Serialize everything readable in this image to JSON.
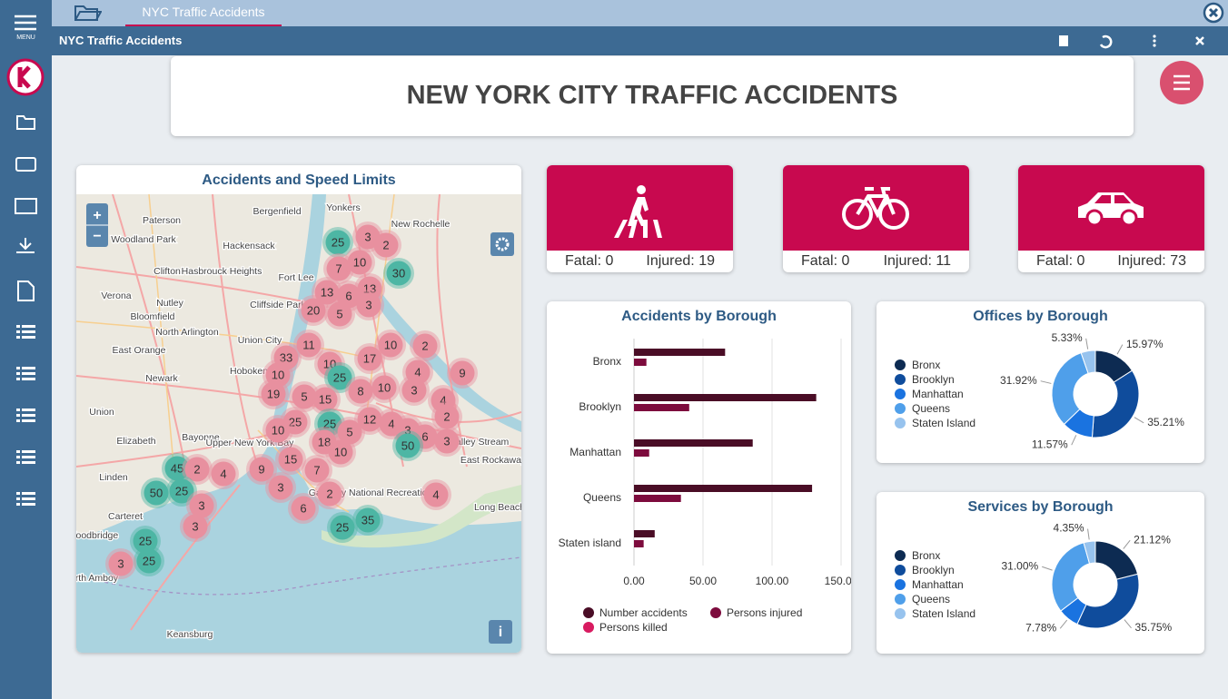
{
  "app": {
    "tab": "NYC Traffic Accidents",
    "window_title": "NYC Traffic Accidents",
    "menu": "MENU"
  },
  "header": {
    "title": "NEW YORK CITY TRAFFIC ACCIDENTS"
  },
  "map": {
    "title": "Accidents and Speed Limits",
    "zoom_in": "+",
    "zoom_out": "−",
    "info": "i",
    "places": [
      "Yonkers",
      "Paterson",
      "Bergenfield",
      "New Rochelle",
      "Woodland Park",
      "Hackensack",
      "Clifton",
      "Hasbrouck Heights",
      "Fort Lee",
      "Verona",
      "Nutley",
      "Cliffside Park",
      "Bloomfield",
      "North Arlington",
      "Union City",
      "East Orange",
      "Newark",
      "Hoboken",
      "Union",
      "Elizabeth",
      "Bayonne",
      "Upper New York Bay",
      "Valley Stream",
      "East Rockaway",
      "Linden",
      "Gateway National Recreation",
      "Long Beach",
      "Carteret",
      "Woodbridge",
      "Perth Amboy",
      "Keansburg"
    ],
    "clusters": [
      {
        "count": 25,
        "color": "#4db6a4"
      },
      {
        "count": 3,
        "color": "#e8909f"
      },
      {
        "count": 2,
        "color": "#e8909f"
      },
      {
        "count": 7,
        "color": "#e8909f"
      },
      {
        "count": 10,
        "color": "#e8909f"
      },
      {
        "count": 30,
        "color": "#4db6a4"
      },
      {
        "count": 13,
        "color": "#e8909f"
      },
      {
        "count": 6,
        "color": "#e8909f"
      },
      {
        "count": 13,
        "color": "#e8909f"
      },
      {
        "count": 3,
        "color": "#e8909f"
      },
      {
        "count": 20,
        "color": "#e8909f"
      },
      {
        "count": 5,
        "color": "#e8909f"
      },
      {
        "count": 11,
        "color": "#e8909f"
      },
      {
        "count": 33,
        "color": "#e8909f"
      },
      {
        "count": 10,
        "color": "#e8909f"
      },
      {
        "count": 17,
        "color": "#e8909f"
      },
      {
        "count": 10,
        "color": "#e8909f"
      },
      {
        "count": 2,
        "color": "#e8909f"
      },
      {
        "count": 10,
        "color": "#e8909f"
      },
      {
        "count": 4,
        "color": "#e8909f"
      },
      {
        "count": 9,
        "color": "#e8909f"
      },
      {
        "count": 25,
        "color": "#4db6a4"
      },
      {
        "count": 19,
        "color": "#e8909f"
      },
      {
        "count": 5,
        "color": "#e8909f"
      },
      {
        "count": 15,
        "color": "#e8909f"
      },
      {
        "count": 8,
        "color": "#e8909f"
      },
      {
        "count": 10,
        "color": "#e8909f"
      },
      {
        "count": 3,
        "color": "#e8909f"
      },
      {
        "count": 4,
        "color": "#e8909f"
      },
      {
        "count": 25,
        "color": "#e8909f"
      },
      {
        "count": 25,
        "color": "#4db6a4"
      },
      {
        "count": 12,
        "color": "#e8909f"
      },
      {
        "count": 4,
        "color": "#e8909f"
      },
      {
        "count": 3,
        "color": "#e8909f"
      },
      {
        "count": 2,
        "color": "#e8909f"
      },
      {
        "count": 6,
        "color": "#e8909f"
      },
      {
        "count": 3,
        "color": "#e8909f"
      },
      {
        "count": 50,
        "color": "#4db6a4"
      },
      {
        "count": 10,
        "color": "#e8909f"
      },
      {
        "count": 5,
        "color": "#e8909f"
      },
      {
        "count": 18,
        "color": "#e8909f"
      },
      {
        "count": 10,
        "color": "#e8909f"
      },
      {
        "count": 45,
        "color": "#4db6a4"
      },
      {
        "count": 2,
        "color": "#e8909f"
      },
      {
        "count": 4,
        "color": "#e8909f"
      },
      {
        "count": 9,
        "color": "#e8909f"
      },
      {
        "count": 15,
        "color": "#e8909f"
      },
      {
        "count": 7,
        "color": "#e8909f"
      },
      {
        "count": 50,
        "color": "#4db6a4"
      },
      {
        "count": 25,
        "color": "#4db6a4"
      },
      {
        "count": 3,
        "color": "#e8909f"
      },
      {
        "count": 3,
        "color": "#e8909f"
      },
      {
        "count": 6,
        "color": "#e8909f"
      },
      {
        "count": 2,
        "color": "#e8909f"
      },
      {
        "count": 3,
        "color": "#e8909f"
      },
      {
        "count": 25,
        "color": "#4db6a4"
      },
      {
        "count": 35,
        "color": "#4db6a4"
      },
      {
        "count": 4,
        "color": "#e8909f"
      },
      {
        "count": 25,
        "color": "#4db6a4"
      },
      {
        "count": 25,
        "color": "#4db6a4"
      },
      {
        "count": 3,
        "color": "#e8909f"
      }
    ]
  },
  "kpis": [
    {
      "fatal_label": "Fatal:",
      "fatal": 0,
      "injured_label": "Injured:",
      "injured": 19
    },
    {
      "fatal_label": "Fatal:",
      "fatal": 0,
      "injured_label": "Injured:",
      "injured": 11
    },
    {
      "fatal_label": "Fatal:",
      "fatal": 0,
      "injured_label": "Injured:",
      "injured": 73
    }
  ],
  "chart_data": [
    {
      "type": "bar",
      "orientation": "horizontal",
      "title": "Accidents by Borough",
      "categories": [
        "Bronx",
        "Brooklyn",
        "Manhattan",
        "Queens",
        "Staten island"
      ],
      "series": [
        {
          "name": "Number accidents",
          "color": "#4a0d26",
          "values": [
            66,
            132,
            86,
            129,
            15
          ]
        },
        {
          "name": "Persons injured",
          "color": "#7d0b3d",
          "values": [
            9,
            40,
            11,
            34,
            7
          ]
        },
        {
          "name": "Persons killed",
          "color": "#d81b60",
          "values": [
            0,
            0,
            0,
            0,
            0
          ]
        }
      ],
      "xlim": [
        0,
        150
      ],
      "xticks": [
        {
          "value": 0,
          "label": "0.00"
        },
        {
          "value": 50,
          "label": "50.00"
        },
        {
          "value": 100,
          "label": "100.00"
        },
        {
          "value": 150,
          "label": "150.00"
        }
      ],
      "grid": true
    },
    {
      "type": "pie",
      "title": "Offices by Borough",
      "categories": [
        "Bronx",
        "Brooklyn",
        "Manhattan",
        "Queens",
        "Staten Island"
      ],
      "values": [
        15.97,
        35.21,
        11.57,
        31.92,
        5.33
      ],
      "value_labels": [
        "15.97%",
        "35.21%",
        "11.57%",
        "31.92%",
        "5.33%"
      ],
      "colors": [
        "#0d2b52",
        "#0f4c9c",
        "#1a73e0",
        "#4f9fea",
        "#97c3ee"
      ]
    },
    {
      "type": "pie",
      "title": "Services by Borough",
      "categories": [
        "Bronx",
        "Brooklyn",
        "Manhattan",
        "Queens",
        "Staten Island"
      ],
      "values": [
        21.12,
        35.75,
        7.78,
        31.0,
        4.35
      ],
      "value_labels": [
        "21.12%",
        "35.75%",
        "7.78%",
        "31.00%",
        "4.35%"
      ],
      "colors": [
        "#0d2b52",
        "#0f4c9c",
        "#1a73e0",
        "#4f9fea",
        "#97c3ee"
      ]
    }
  ]
}
